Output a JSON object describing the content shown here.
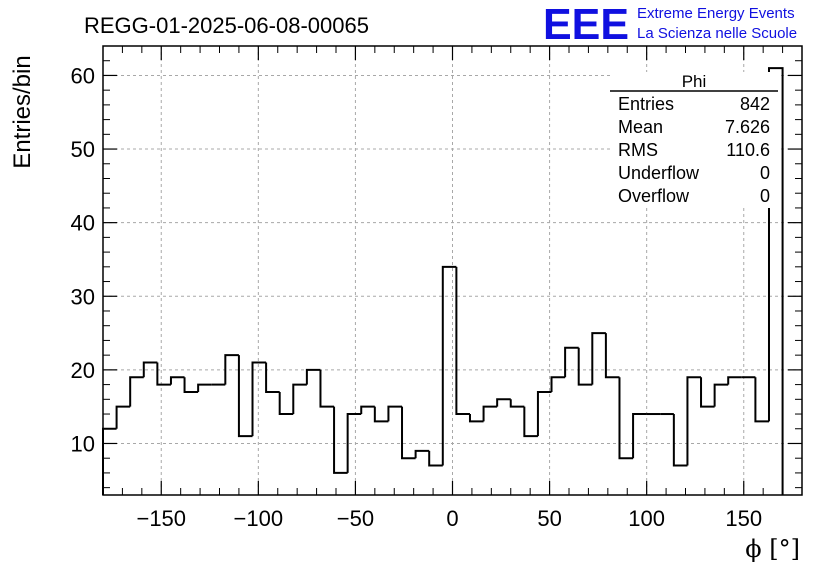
{
  "title": "REGG-01-2025-06-08-00065",
  "logo": {
    "mark": "EEE",
    "line1": "Extreme Energy Events",
    "line2": "La Scienza nelle Scuole",
    "color": "#1010e0"
  },
  "stats": {
    "name": "Phi",
    "rows": [
      {
        "label": "Entries",
        "value": "842"
      },
      {
        "label": "Mean",
        "value": "7.626"
      },
      {
        "label": "RMS",
        "value": "110.6"
      },
      {
        "label": "Underflow",
        "value": "0"
      },
      {
        "label": "Overflow",
        "value": "0"
      }
    ]
  },
  "chart_data": {
    "type": "histogram",
    "xlabel": "ϕ [°]",
    "ylabel": "Entries/bin",
    "xlim": [
      -180,
      180
    ],
    "ylim": [
      3,
      64
    ],
    "grid": true,
    "x_ticks": [
      -150,
      -100,
      -50,
      0,
      50,
      100,
      150
    ],
    "y_ticks": [
      10,
      20,
      30,
      40,
      50,
      60
    ],
    "bins": [
      {
        "x0": -180,
        "x1": -173,
        "count": 12
      },
      {
        "x0": -173,
        "x1": -166,
        "count": 15
      },
      {
        "x0": -166,
        "x1": -159,
        "count": 19
      },
      {
        "x0": -159,
        "x1": -152,
        "count": 21
      },
      {
        "x0": -152,
        "x1": -145,
        "count": 18
      },
      {
        "x0": -145,
        "x1": -138,
        "count": 19
      },
      {
        "x0": -138,
        "x1": -131,
        "count": 17
      },
      {
        "x0": -131,
        "x1": -124,
        "count": 18
      },
      {
        "x0": -124,
        "x1": -117,
        "count": 18
      },
      {
        "x0": -117,
        "x1": -110,
        "count": 22
      },
      {
        "x0": -110,
        "x1": -103,
        "count": 11
      },
      {
        "x0": -103,
        "x1": -96,
        "count": 21
      },
      {
        "x0": -96,
        "x1": -89,
        "count": 17
      },
      {
        "x0": -89,
        "x1": -82,
        "count": 14
      },
      {
        "x0": -82,
        "x1": -75,
        "count": 18
      },
      {
        "x0": -75,
        "x1": -68,
        "count": 20
      },
      {
        "x0": -68,
        "x1": -61,
        "count": 15
      },
      {
        "x0": -61,
        "x1": -54,
        "count": 6
      },
      {
        "x0": -54,
        "x1": -47,
        "count": 14
      },
      {
        "x0": -47,
        "x1": -40,
        "count": 15
      },
      {
        "x0": -40,
        "x1": -33,
        "count": 13
      },
      {
        "x0": -33,
        "x1": -26,
        "count": 15
      },
      {
        "x0": -26,
        "x1": -19,
        "count": 8
      },
      {
        "x0": -19,
        "x1": -12,
        "count": 9
      },
      {
        "x0": -12,
        "x1": -5,
        "count": 7
      },
      {
        "x0": -5,
        "x1": 2,
        "count": 34
      },
      {
        "x0": 2,
        "x1": 9,
        "count": 14
      },
      {
        "x0": 9,
        "x1": 16,
        "count": 13
      },
      {
        "x0": 16,
        "x1": 23,
        "count": 15
      },
      {
        "x0": 23,
        "x1": 30,
        "count": 16
      },
      {
        "x0": 30,
        "x1": 37,
        "count": 15
      },
      {
        "x0": 37,
        "x1": 44,
        "count": 11
      },
      {
        "x0": 44,
        "x1": 51,
        "count": 17
      },
      {
        "x0": 51,
        "x1": 58,
        "count": 19
      },
      {
        "x0": 58,
        "x1": 65,
        "count": 23
      },
      {
        "x0": 65,
        "x1": 72,
        "count": 18
      },
      {
        "x0": 72,
        "x1": 79,
        "count": 25
      },
      {
        "x0": 79,
        "x1": 86,
        "count": 19
      },
      {
        "x0": 86,
        "x1": 93,
        "count": 8
      },
      {
        "x0": 93,
        "x1": 100,
        "count": 14
      },
      {
        "x0": 100,
        "x1": 107,
        "count": 14
      },
      {
        "x0": 107,
        "x1": 114,
        "count": 14
      },
      {
        "x0": 114,
        "x1": 121,
        "count": 7
      },
      {
        "x0": 121,
        "x1": 128,
        "count": 19
      },
      {
        "x0": 128,
        "x1": 135,
        "count": 15
      },
      {
        "x0": 135,
        "x1": 142,
        "count": 18
      },
      {
        "x0": 142,
        "x1": 149,
        "count": 19
      },
      {
        "x0": 149,
        "x1": 156,
        "count": 19
      },
      {
        "x0": 156,
        "x1": 163,
        "count": 13
      },
      {
        "x0": 163,
        "x1": 170,
        "count": 61
      }
    ]
  }
}
